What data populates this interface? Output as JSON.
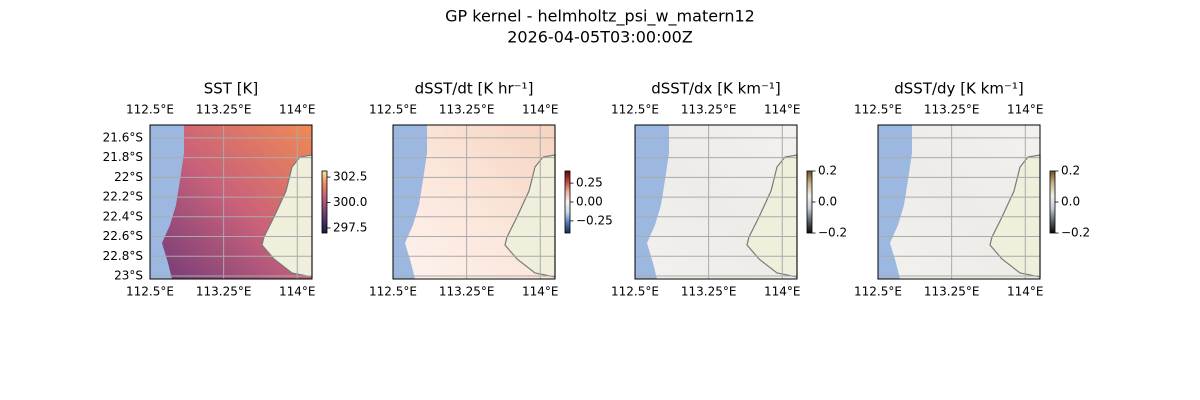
{
  "title": "GP kernel - helmholtz_psi_w_matern12",
  "subtitle": "2026-04-05T03:00:00Z",
  "chart_data": [
    {
      "type": "map",
      "title": "SST [K]",
      "xlim": [
        112.5,
        114.15
      ],
      "ylim": [
        -23.03,
        -21.47
      ],
      "xticks": [
        {
          "value": 112.5,
          "label": "112.5°E"
        },
        {
          "value": 113.25,
          "label": "113.25°E"
        },
        {
          "value": 114,
          "label": "114°E"
        }
      ],
      "yticks": [
        {
          "value": -21.6,
          "label": "21.6°S"
        },
        {
          "value": -21.8,
          "label": "21.8°S"
        },
        {
          "value": -22,
          "label": "22°S"
        },
        {
          "value": -22.2,
          "label": "22.2°S"
        },
        {
          "value": -22.4,
          "label": "22.4°S"
        },
        {
          "value": -22.6,
          "label": "22.6°S"
        },
        {
          "value": -22.8,
          "label": "22.8°S"
        },
        {
          "value": -23,
          "label": "23°S"
        }
      ],
      "grid": true,
      "clim": [
        297.0,
        303.1
      ],
      "cticks": [
        302.5,
        {
          "value": 300,
          "label": "300.0"
        },
        297.5
      ],
      "colors": [
        "#1c1b3a",
        "#4d2f6b",
        "#8a4a78",
        "#c8627a",
        "#ee8a5a",
        "#f7e6a0"
      ]
    },
    {
      "type": "map",
      "title": "dSST/dt [K hr⁻¹]",
      "xlim": [
        112.5,
        114.15
      ],
      "ylim": [
        -23.03,
        -21.47
      ],
      "xticks": [
        {
          "value": 112.5,
          "label": "112.5°E"
        },
        {
          "value": 113.25,
          "label": "113.25°E"
        },
        {
          "value": 114,
          "label": "114°E"
        }
      ],
      "yticks": [
        -21.6,
        -21.8,
        -22,
        -22.2,
        -22.4,
        -22.6,
        -22.8,
        -23
      ],
      "grid": true,
      "clim": [
        -0.41,
        0.41
      ],
      "cticks": [
        0.25,
        {
          "value": 0,
          "label": "0.00"
        },
        {
          "value": -0.25,
          "label": "−0.25"
        }
      ],
      "colors": [
        "#1b2a5c",
        "#4f7bbf",
        "#c9d8ea",
        "#f8f3ef",
        "#eab29a",
        "#c0403a",
        "#5c0a1c"
      ]
    },
    {
      "type": "map",
      "title": "dSST/dx [K km⁻¹]",
      "xlim": [
        112.5,
        114.15
      ],
      "ylim": [
        -23.03,
        -21.47
      ],
      "xticks": [
        {
          "value": 112.5,
          "label": "112.5°E"
        },
        {
          "value": 113.25,
          "label": "113.25°E"
        },
        {
          "value": 114,
          "label": "114°E"
        }
      ],
      "yticks": [
        -21.6,
        -21.8,
        -22,
        -22.2,
        -22.4,
        -22.6,
        -22.8,
        -23
      ],
      "grid": true,
      "clim": [
        -0.2,
        0.2
      ],
      "cticks": [
        0.2,
        {
          "value": 0,
          "label": "0.0"
        },
        {
          "value": -0.2,
          "label": "−0.2"
        }
      ],
      "colors": [
        "#0a0a0a",
        "#5c6470",
        "#c8ccd2",
        "#f2f0ec",
        "#cbb48a",
        "#6e5125"
      ]
    },
    {
      "type": "map",
      "title": "dSST/dy [K km⁻¹]",
      "xlim": [
        112.5,
        114.15
      ],
      "ylim": [
        -23.03,
        -21.47
      ],
      "xticks": [
        {
          "value": 112.5,
          "label": "112.5°E"
        },
        {
          "value": 113.25,
          "label": "113.25°E"
        },
        {
          "value": 114,
          "label": "114°E"
        }
      ],
      "yticks": [
        -21.6,
        -21.8,
        -22,
        -22.2,
        -22.4,
        -22.6,
        -22.8,
        -23
      ],
      "grid": true,
      "clim": [
        -0.2,
        0.2
      ],
      "cticks": [
        0.2,
        {
          "value": 0,
          "label": "0.0"
        },
        {
          "value": -0.2,
          "label": "−0.2"
        }
      ],
      "colors": [
        "#0a0a0a",
        "#5c6470",
        "#c8ccd2",
        "#f2f0ec",
        "#cbb48a",
        "#6e5125"
      ]
    }
  ]
}
